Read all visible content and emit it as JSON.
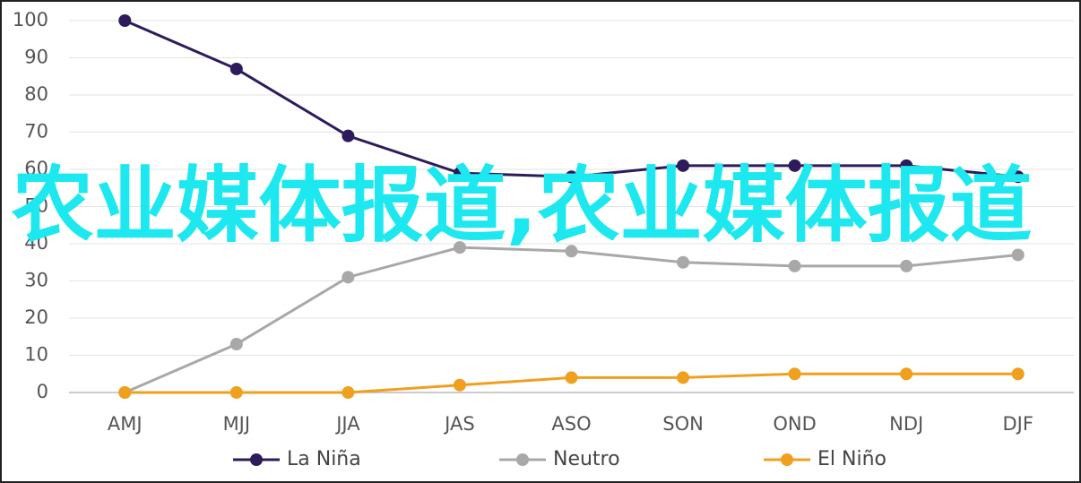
{
  "chart_data": {
    "type": "line",
    "categories": [
      "AMJ",
      "MJJ",
      "JJA",
      "JAS",
      "ASO",
      "SON",
      "OND",
      "NDJ",
      "DJF"
    ],
    "series": [
      {
        "name": "La Niña",
        "color": "#2e1b5c",
        "values": [
          100,
          87,
          69,
          59,
          58,
          61,
          61,
          61,
          58
        ]
      },
      {
        "name": "Neutro",
        "color": "#a8a8a8",
        "values": [
          0,
          13,
          31,
          39,
          38,
          35,
          34,
          34,
          37
        ]
      },
      {
        "name": "El Niño",
        "color": "#f0a01f",
        "values": [
          0,
          0,
          0,
          2,
          4,
          4,
          5,
          5,
          5
        ]
      }
    ],
    "ylim": [
      0,
      100
    ],
    "yticks": [
      0,
      10,
      20,
      30,
      40,
      50,
      60,
      70,
      80,
      90,
      100
    ],
    "grid": true,
    "legend": "bottom",
    "annotation": "农业媒体报道,农业媒体报道"
  }
}
